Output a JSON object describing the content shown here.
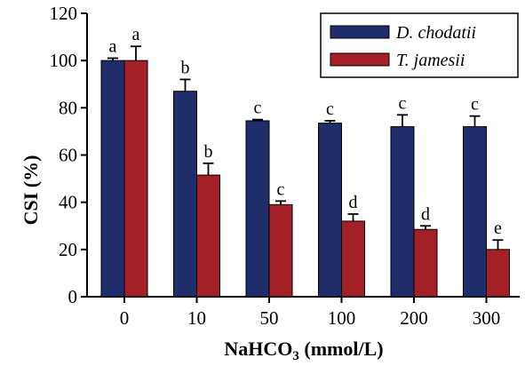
{
  "chart_data": {
    "type": "bar",
    "xlabel_main": "NaHCO",
    "xlabel_sub": "3",
    "xlabel_tail": " (mmol/L)",
    "ylabel": "CSI (%)",
    "ylim": [
      0,
      120
    ],
    "yticks": [
      0,
      20,
      40,
      60,
      80,
      100,
      120
    ],
    "ytick_labels": [
      "0",
      "20",
      "40",
      "60",
      "80",
      "100",
      "120"
    ],
    "categories": [
      "0",
      "10",
      "50",
      "100",
      "200",
      "300"
    ],
    "grid": false,
    "legend_position": "top-right",
    "series": [
      {
        "name": "D. chodatii",
        "color": "#1f2d6b",
        "values": [
          100,
          87,
          74.5,
          73.5,
          72,
          72
        ],
        "errors": [
          1,
          5,
          0.5,
          1,
          5,
          4.5
        ],
        "labels": [
          "a",
          "b",
          "c",
          "c",
          "c",
          "c"
        ]
      },
      {
        "name": "T. jamesii",
        "color": "#a32126",
        "values": [
          100,
          51.5,
          39,
          32,
          28.5,
          20
        ],
        "errors": [
          6,
          5,
          1.5,
          3,
          1.5,
          4
        ],
        "labels": [
          "a",
          "b",
          "c",
          "d",
          "d",
          "e"
        ]
      }
    ]
  }
}
